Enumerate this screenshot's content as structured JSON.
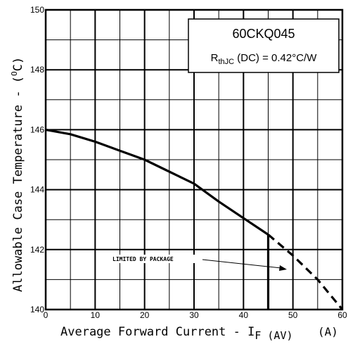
{
  "chart_data": {
    "type": "line",
    "xlabel_main": "Average Forward Current - I",
    "xlabel_sub": "F (AV)",
    "xlabel_unit": "(A)",
    "ylabel_main": "Allowable Case Temperature - (",
    "ylabel_sup": "O",
    "ylabel_tail": "C)",
    "xlim": [
      0,
      60
    ],
    "ylim": [
      140,
      150
    ],
    "x_major_ticks": [
      0,
      10,
      20,
      30,
      40,
      50,
      60
    ],
    "x_minor_ticks": [
      5,
      15,
      25,
      35,
      45,
      55
    ],
    "y_major_ticks": [
      140,
      142,
      144,
      146,
      148,
      150
    ],
    "y_minor_ticks": [
      141,
      143,
      145,
      147,
      149
    ],
    "grid": true,
    "legend_box": {
      "part_number": "60CKQ045",
      "rth_prefix": "R",
      "rth_sub": "thJC",
      "rth_suffix": " (DC) = 0.42°C/W"
    },
    "annotation": "LIMITED BY PACKAGE",
    "series": [
      {
        "style": "solid",
        "x": [
          0,
          5,
          10,
          15,
          20,
          25,
          30,
          35,
          40,
          45
        ],
        "y": [
          146.0,
          145.85,
          145.6,
          145.3,
          145.0,
          144.6,
          144.2,
          143.6,
          143.05,
          142.5
        ]
      },
      {
        "style": "solid",
        "x": [
          45,
          45
        ],
        "y": [
          142.5,
          140.0
        ]
      },
      {
        "style": "dashed",
        "x": [
          45,
          50,
          55,
          60
        ],
        "y": [
          142.5,
          141.8,
          141.0,
          140.0
        ]
      }
    ]
  }
}
